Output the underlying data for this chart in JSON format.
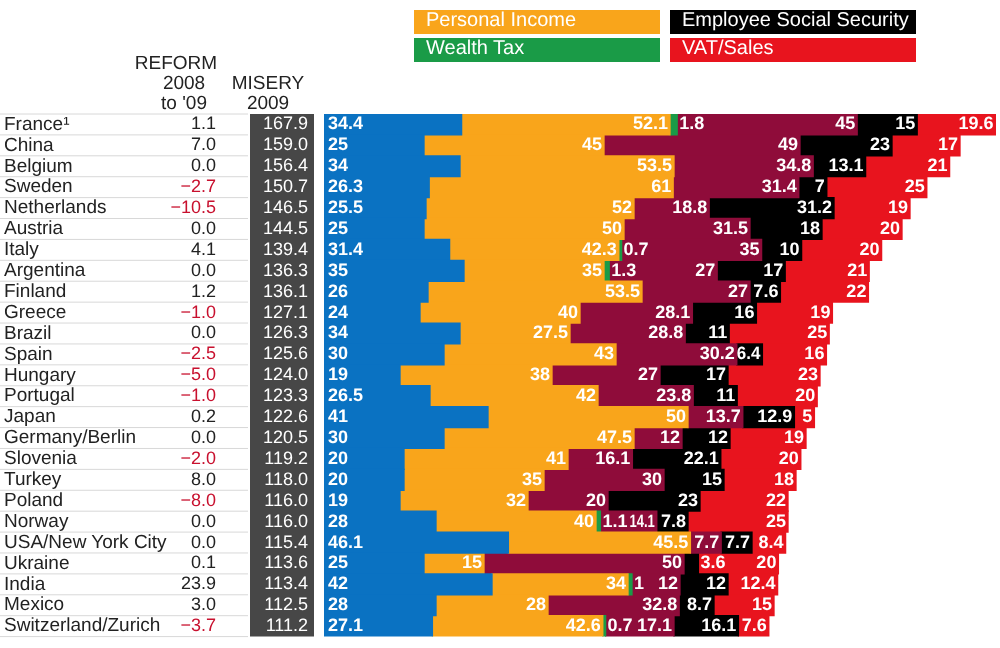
{
  "chart_data": {
    "type": "bar",
    "orientation": "horizontal",
    "stacked": true,
    "data_labels": true,
    "legend": "top right",
    "grid": false,
    "tick_labels": "y",
    "xlim": [
      0,
      168
    ],
    "categories": [
      "France¹",
      "China",
      "Belgium",
      "Sweden",
      "Netherlands",
      "Austria",
      "Italy",
      "Argentina",
      "Finland",
      "Greece",
      "Brazil",
      "Spain",
      "Hungary",
      "Portugal",
      "Japan",
      "Germany/Berlin",
      "Slovenia",
      "Turkey",
      "Poland",
      "Norway",
      "USA/New York City",
      "Ukraine",
      "India",
      "Mexico",
      "Switzerland/Zurich"
    ],
    "series": [
      {
        "color": "#0a72c2",
        "values": [
          34.4,
          25,
          34,
          26.3,
          25.5,
          25,
          31.4,
          35,
          26,
          24,
          34,
          30,
          19,
          26.5,
          41,
          30,
          20,
          20,
          19,
          28,
          46.1,
          25,
          42,
          28,
          27.1
        ]
      },
      {
        "name": "Personal Income",
        "color": "#f9a51b",
        "values": [
          52.1,
          45,
          53.5,
          61,
          52,
          50,
          42.3,
          35,
          53.5,
          40,
          27.5,
          43,
          38,
          42,
          50,
          47.5,
          41,
          35,
          32,
          40,
          45.5,
          15,
          34,
          28,
          42.6
        ]
      },
      {
        "name": "Wealth Tax",
        "color": "#1a9b47",
        "values": [
          1.8,
          null,
          null,
          null,
          null,
          null,
          0.7,
          1.3,
          null,
          null,
          null,
          null,
          null,
          null,
          null,
          null,
          null,
          null,
          null,
          1.1,
          null,
          null,
          1,
          null,
          0.7
        ]
      },
      {
        "color": "#8f0c3a",
        "values": [
          45,
          49,
          34.8,
          31.4,
          18.8,
          31.5,
          35,
          27,
          27,
          28.1,
          28.8,
          30.2,
          27,
          23.8,
          13.7,
          12,
          16.1,
          30,
          20,
          14.1,
          7.7,
          50,
          12,
          32.8,
          17.1
        ]
      },
      {
        "name": "Employee Social Security",
        "color": "#000000",
        "values": [
          15,
          23,
          13.1,
          7,
          31.2,
          18,
          10,
          17,
          7.6,
          16,
          11,
          6.4,
          17,
          11,
          12.9,
          12,
          22.1,
          15,
          23,
          7.8,
          7.7,
          3.6,
          12,
          8.7,
          16.1
        ]
      },
      {
        "name": "VAT/Sales",
        "color": "#e8141e",
        "values": [
          19.6,
          17,
          21,
          25,
          19,
          20,
          20,
          21,
          22,
          19,
          25,
          16,
          23,
          20,
          5,
          19,
          20,
          18,
          22,
          25,
          8.4,
          20,
          12.4,
          15,
          7.6
        ]
      }
    ],
    "totals": [
      "167.9",
      "159.0",
      "156.4",
      "150.7",
      "146.5",
      "144.5",
      "139.4",
      "136.3",
      "136.1",
      "127.1",
      "126.3",
      "125.6",
      "124.0",
      "123.3",
      "122.6",
      "120.5",
      "119.2",
      "118.0",
      "116.0",
      "116.0",
      "115.4",
      "113.6",
      "113.4",
      "112.5",
      "111.2"
    ],
    "annotations": [
      "REFORM\n2008\nto '09",
      "MISERY\n2009",
      "1.1",
      "7.0",
      "0.0",
      "−2.7",
      "−10.5",
      "0.0",
      "4.1",
      "0.0",
      "1.2",
      "−1.0",
      "0.0",
      "−2.5",
      "−5.0",
      "−1.0",
      "0.2",
      "0.0",
      "−2.0",
      "8.0",
      "−8.0",
      "0.0",
      "0.0",
      "0.1",
      "23.9",
      "3.0",
      "−3.7"
    ]
  }
}
